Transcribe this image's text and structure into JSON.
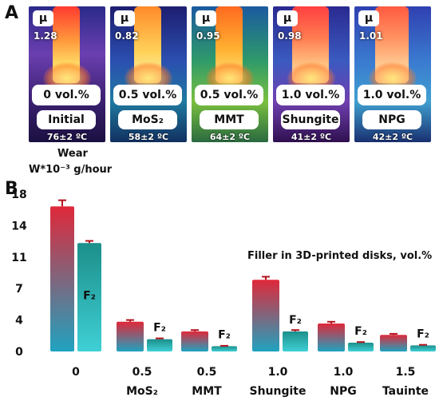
{
  "panel_a": {
    "letter": "A",
    "samples": [
      {
        "mu_symbol": "μ",
        "mu": "1.28",
        "concentration": "0 vol.%",
        "material": "Initial",
        "temperature": "76±2 ºC"
      },
      {
        "mu_symbol": "μ",
        "mu": "0.82",
        "concentration": "0.5 vol.%",
        "material": "MoS₂",
        "temperature": "58±2 ºC"
      },
      {
        "mu_symbol": "μ",
        "mu": "0.95",
        "concentration": "0.5 vol.%",
        "material": "MMT",
        "temperature": "64±2 ºC"
      },
      {
        "mu_symbol": "μ",
        "mu": "0.98",
        "concentration": "1.0 vol.%",
        "material": "Shungite",
        "temperature": "41±2 ºC"
      },
      {
        "mu_symbol": "μ",
        "mu": "1.01",
        "concentration": "1.0 vol.%",
        "material": "NPG",
        "temperature": "42±2 ºC"
      }
    ]
  },
  "panel_b": {
    "letter": "B",
    "ylabel_line1": "Wear",
    "ylabel_line2": "W*10⁻³ g/hour",
    "annotation": "Filler in 3D-printed disks, vol.%"
  },
  "colors": {
    "bar_top": "#e0283a",
    "bar_bottom": "#1fa3c0",
    "f2_top": "#1c8f8a",
    "f2_bottom": "#3fd0d6",
    "error": "#b3131f"
  },
  "chart_data": {
    "type": "bar",
    "title": "",
    "ylabel": "Wear W*10⁻³ g/hour",
    "ylim": [
      0,
      18
    ],
    "yticks": [
      "0",
      "4",
      "7",
      "11",
      "14",
      "18"
    ],
    "ytick_values": [
      0,
      3.6,
      7.2,
      10.8,
      14.4,
      18
    ],
    "categories": [
      {
        "line1": "0",
        "line2": ""
      },
      {
        "line1": "0.5",
        "line2": "MoS₂"
      },
      {
        "line1": "0.5",
        "line2": "MMT"
      },
      {
        "line1": "1.0",
        "line2": "Shungite"
      },
      {
        "line1": "1.0",
        "line2": "NPG"
      },
      {
        "line1": "1.5",
        "line2": "Tauinte"
      }
    ],
    "series": [
      {
        "values": [
          16.6,
          3.4,
          2.3,
          8.2,
          3.2,
          1.9
        ],
        "errors": [
          0.7,
          0.2,
          0.15,
          0.35,
          0.2,
          0.12
        ]
      },
      {
        "name": "F₂",
        "values": [
          12.4,
          1.4,
          0.6,
          2.3,
          1.0,
          0.7
        ],
        "errors": [
          0.25,
          0.1,
          0.05,
          0.15,
          0.08,
          0.06
        ]
      }
    ]
  }
}
